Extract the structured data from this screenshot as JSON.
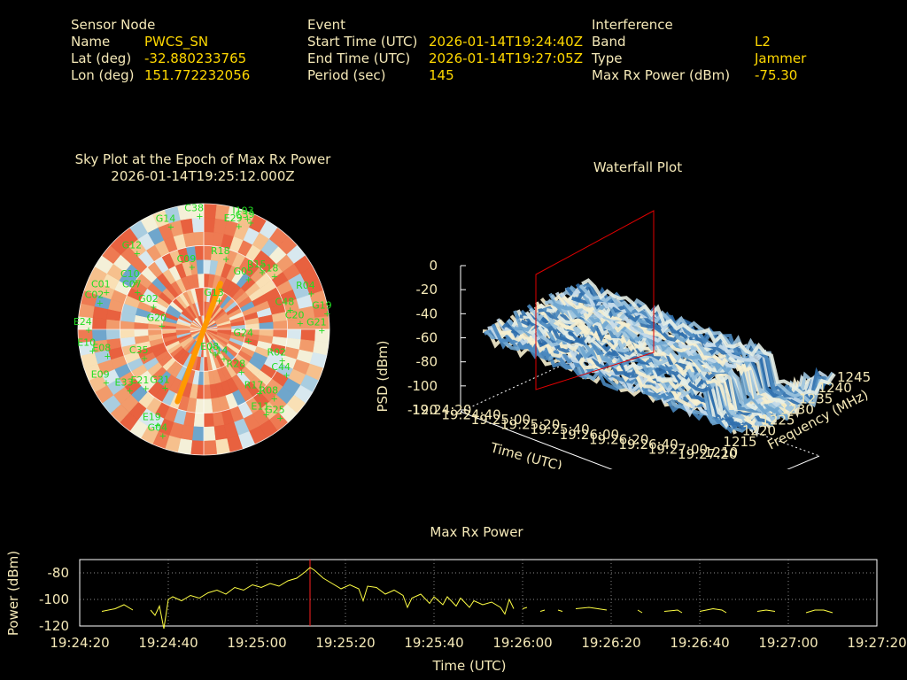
{
  "header": {
    "sensor": {
      "heading": "Sensor Node",
      "rows": [
        {
          "label": "Name",
          "value": "PWCS_SN"
        },
        {
          "label": "Lat (deg)",
          "value": "-32.880233765"
        },
        {
          "label": "Lon (deg)",
          "value": "151.772232056"
        }
      ]
    },
    "event": {
      "heading": "Event",
      "rows": [
        {
          "label": "Start Time (UTC)",
          "value": "2026-01-14T19:24:40Z"
        },
        {
          "label": "End Time (UTC)",
          "value": "2026-01-14T19:27:05Z"
        },
        {
          "label": "Period (sec)",
          "value": "145"
        }
      ]
    },
    "interference": {
      "heading": "Interference",
      "rows": [
        {
          "label": "Band",
          "value": "L2"
        },
        {
          "label": "Type",
          "value": "Jammer"
        },
        {
          "label": "Max Rx Power (dBm)",
          "value": "-75.30"
        }
      ]
    }
  },
  "colors": {
    "label": "#f5e9b8",
    "value": "#ffd800",
    "sat_label": "#22dd22",
    "track": "#ff9900",
    "marker": "#ff2020",
    "power_line": "#ffff44"
  },
  "chart_data": [
    {
      "type": "polar",
      "title": "Sky Plot at the Epoch of Max Rx Power",
      "subtitle": "2026-01-14T19:25:12.000Z",
      "satellites": [
        {
          "id": "C38",
          "az": 355,
          "el": 5
        },
        {
          "id": "I193",
          "az": 18,
          "el": 3
        },
        {
          "id": "C39",
          "az": 20,
          "el": 5
        },
        {
          "id": "G14",
          "az": 340,
          "el": 8
        },
        {
          "id": "E29",
          "az": 15,
          "el": 10
        },
        {
          "id": "G12",
          "az": 318,
          "el": 12
        },
        {
          "id": "R18",
          "az": 12,
          "el": 35
        },
        {
          "id": "C09",
          "az": 345,
          "el": 40
        },
        {
          "id": "G05",
          "az": 35,
          "el": 42
        },
        {
          "id": "R15",
          "az": 40,
          "el": 32
        },
        {
          "id": "C18",
          "az": 48,
          "el": 28
        },
        {
          "id": "R04",
          "az": 68,
          "el": 12
        },
        {
          "id": "C10",
          "az": 305,
          "el": 25
        },
        {
          "id": "C07",
          "az": 300,
          "el": 30
        },
        {
          "id": "C01",
          "az": 292,
          "el": 10
        },
        {
          "id": "C02",
          "az": 286,
          "el": 8
        },
        {
          "id": "G02",
          "az": 296,
          "el": 45
        },
        {
          "id": "C48",
          "az": 73,
          "el": 30
        },
        {
          "id": "G19",
          "az": 80,
          "el": 5
        },
        {
          "id": "C20",
          "az": 83,
          "el": 25
        },
        {
          "id": "E24",
          "az": 272,
          "el": 3
        },
        {
          "id": "E10",
          "az": 262,
          "el": 5
        },
        {
          "id": "E08",
          "az": 258,
          "el": 15
        },
        {
          "id": "E09",
          "az": 245,
          "el": 8
        },
        {
          "id": "G21",
          "az": 88,
          "el": 10
        },
        {
          "id": "G13",
          "az": 15,
          "el": 65
        },
        {
          "id": "G20",
          "az": 280,
          "el": 55
        },
        {
          "id": "C35",
          "az": 250,
          "el": 40
        },
        {
          "id": "G24",
          "az": 100,
          "el": 62
        },
        {
          "id": "R28",
          "az": 140,
          "el": 55
        },
        {
          "id": "C14",
          "az": 150,
          "el": 70
        },
        {
          "id": "E08",
          "az": 165,
          "el": 75
        },
        {
          "id": "R02",
          "az": 110,
          "el": 35
        },
        {
          "id": "C44",
          "az": 118,
          "el": 28
        },
        {
          "id": "R17",
          "az": 140,
          "el": 35
        },
        {
          "id": "G31",
          "az": 220,
          "el": 40
        },
        {
          "id": "E21",
          "az": 230,
          "el": 30
        },
        {
          "id": "R08",
          "az": 135,
          "el": 25
        },
        {
          "id": "E11",
          "az": 145,
          "el": 20
        },
        {
          "id": "G25",
          "az": 140,
          "el": 12
        },
        {
          "id": "E33",
          "az": 235,
          "el": 20
        },
        {
          "id": "E19",
          "az": 210,
          "el": 15
        },
        {
          "id": "G04",
          "az": 205,
          "el": 10
        }
      ],
      "track": [
        {
          "az": 20,
          "el": 55
        },
        {
          "az": 200,
          "el": 35
        }
      ]
    },
    {
      "type": "surface",
      "title": "Waterfall Plot",
      "xlabel": "Time (UTC)",
      "ylabel": "Frequency (MHz)",
      "zlabel": "PSD (dBm)",
      "x_ticks": [
        "19:24:20",
        "19:24:40",
        "19:25:00",
        "19:25:20",
        "19:25:40",
        "19:26:00",
        "19:26:20",
        "19:26:40",
        "19:27:00",
        "19:27:20"
      ],
      "y_ticks": [
        "1210",
        "1215",
        "1220",
        "1225",
        "1230",
        "1235",
        "1240",
        "1245"
      ],
      "z_ticks": [
        "0",
        "-20",
        "-40",
        "-60",
        "-80",
        "-100",
        "-120"
      ],
      "zlim": [
        -120,
        0
      ],
      "ylim": [
        1210,
        1245
      ],
      "max_epoch": "19:25:12"
    },
    {
      "type": "line",
      "title": "Max Rx Power",
      "xlabel": "Time (UTC)",
      "ylabel": "Power (dBm)",
      "x_ticks": [
        "19:24:20",
        "19:24:40",
        "19:25:00",
        "19:25:20",
        "19:25:40",
        "19:26:00",
        "19:26:20",
        "19:26:40",
        "19:27:00",
        "19:27:20"
      ],
      "y_ticks": [
        "-80",
        "-100",
        "-120"
      ],
      "ylim": [
        -120,
        -70
      ],
      "marker_x": 52,
      "series": [
        {
          "segments": [
            [
              [
                5,
                -109
              ],
              [
                8,
                -107
              ],
              [
                10,
                -104
              ],
              [
                12,
                -108
              ]
            ],
            [
              [
                16,
                -108
              ],
              [
                17,
                -112
              ],
              [
                18,
                -105
              ],
              [
                19,
                -122
              ],
              [
                20,
                -100
              ],
              [
                21,
                -98
              ],
              [
                23,
                -101
              ],
              [
                25,
                -97
              ],
              [
                27,
                -99
              ],
              [
                29,
                -95
              ],
              [
                31,
                -93
              ],
              [
                33,
                -96
              ],
              [
                35,
                -91
              ],
              [
                37,
                -93
              ],
              [
                39,
                -89
              ],
              [
                41,
                -91
              ],
              [
                43,
                -88
              ],
              [
                45,
                -90
              ],
              [
                47,
                -86
              ],
              [
                49,
                -84
              ],
              [
                51,
                -79
              ],
              [
                52,
                -76
              ],
              [
                53,
                -78
              ],
              [
                55,
                -84
              ],
              [
                57,
                -88
              ],
              [
                59,
                -92
              ],
              [
                61,
                -89
              ],
              [
                63,
                -92
              ],
              [
                64,
                -101
              ],
              [
                65,
                -90
              ],
              [
                67,
                -91
              ],
              [
                69,
                -96
              ],
              [
                71,
                -93
              ],
              [
                73,
                -97
              ],
              [
                74,
                -106
              ],
              [
                75,
                -99
              ],
              [
                77,
                -96
              ],
              [
                79,
                -103
              ],
              [
                80,
                -98
              ],
              [
                82,
                -104
              ],
              [
                83,
                -98
              ],
              [
                85,
                -105
              ],
              [
                86,
                -99
              ],
              [
                88,
                -106
              ],
              [
                89,
                -101
              ],
              [
                91,
                -104
              ],
              [
                93,
                -102
              ],
              [
                95,
                -106
              ],
              [
                96,
                -111
              ],
              [
                97,
                -100
              ],
              [
                98,
                -107
              ]
            ],
            [
              [
                100,
                -107
              ],
              [
                101,
                -106
              ]
            ],
            [
              [
                104,
                -109
              ],
              [
                105,
                -108
              ]
            ],
            [
              [
                108,
                -108
              ],
              [
                109,
                -109
              ]
            ],
            [
              [
                112,
                -107
              ],
              [
                115,
                -106
              ],
              [
                117,
                -107
              ],
              [
                119,
                -108
              ]
            ],
            [
              [
                126,
                -108
              ],
              [
                127,
                -110
              ]
            ],
            [
              [
                132,
                -109
              ],
              [
                135,
                -108
              ],
              [
                136,
                -110
              ]
            ],
            [
              [
                140,
                -109
              ],
              [
                143,
                -107
              ],
              [
                145,
                -108
              ],
              [
                146,
                -110
              ]
            ],
            [
              [
                153,
                -109
              ],
              [
                155,
                -108
              ],
              [
                157,
                -109
              ]
            ],
            [
              [
                164,
                -110
              ],
              [
                166,
                -108
              ],
              [
                168,
                -108
              ],
              [
                170,
                -110
              ]
            ]
          ]
        }
      ]
    }
  ]
}
